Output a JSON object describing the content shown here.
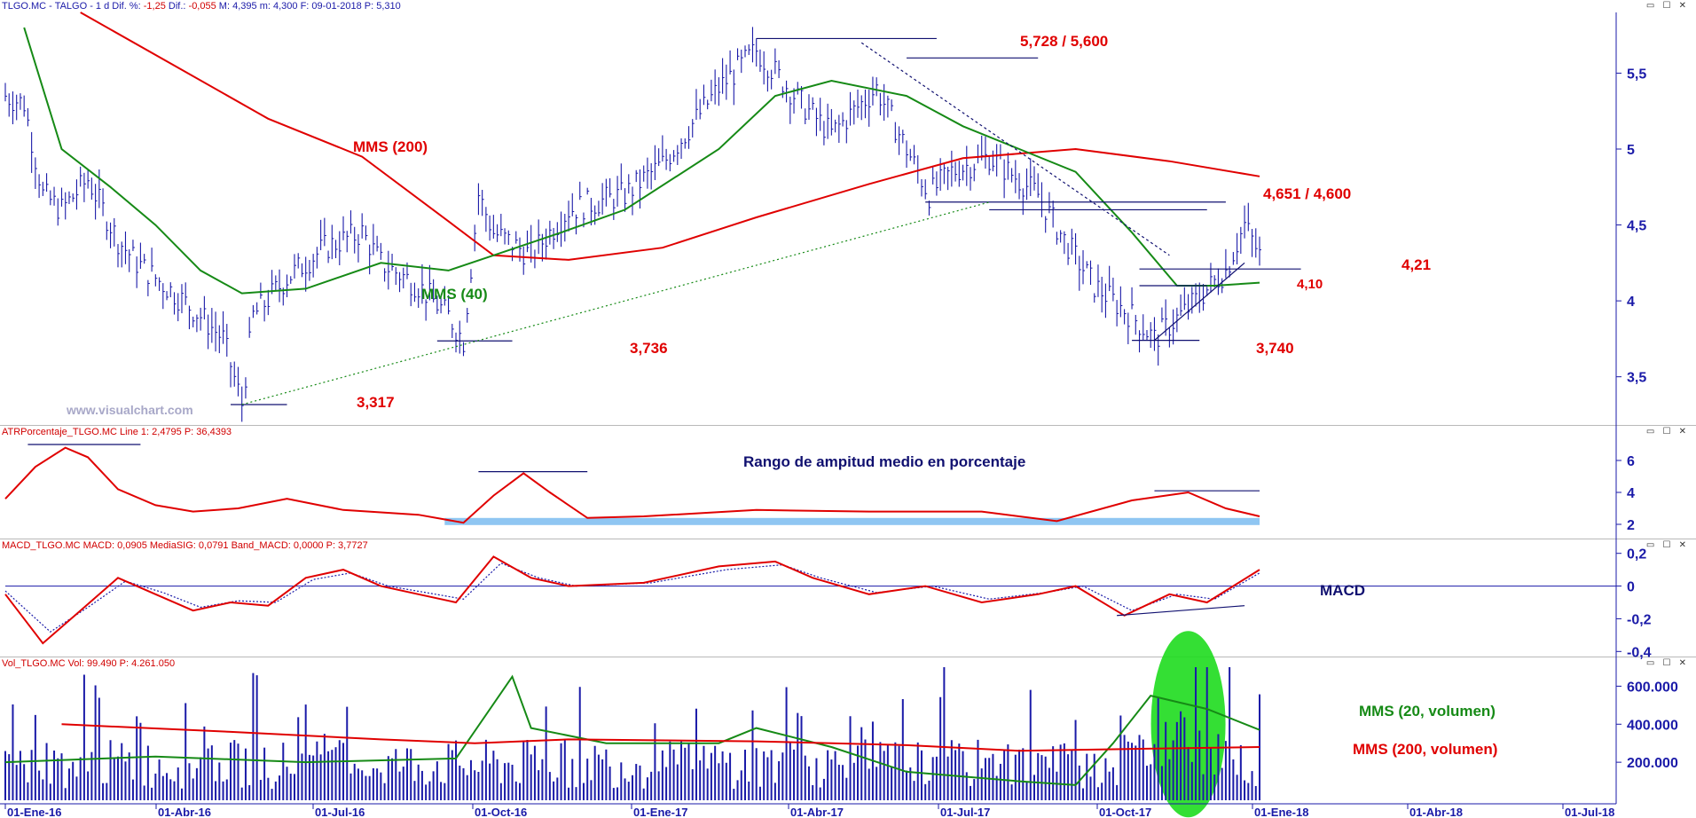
{
  "header": {
    "symbol": "TLGO.MC - TALGO - 1 d",
    "dif_pct_label": "Dif. %:",
    "dif_pct": "-1,25",
    "dif_label": "Dif.:",
    "dif": "-0,055",
    "max_label": "M:",
    "max": "4,395",
    "min_label": "m:",
    "min": "4,300",
    "date_label": "F:",
    "date": "09-01-2018",
    "p_label": "P:",
    "p": "5,310"
  },
  "watermark": "www.visualchart.com",
  "panels": {
    "atr": {
      "title": "ATRPorcentaje_TLGO.MC Line 1: 2,4795 P: 36,4393",
      "annotation": "Rango de ampitud medio en porcentaje"
    },
    "macd": {
      "title": "MACD_TLGO.MC MACD: 0,0905 MediaSIG: 0,0791 Band_MACD: 0,0000 P: 3,7727",
      "annotation": "MACD"
    },
    "vol": {
      "title": "Vol_TLGO.MC Vol: 99.490 P: 4.261.050",
      "annotation_20": "MMS (20, volumen)",
      "annotation_200": "MMS (200, volumen)"
    }
  },
  "window_buttons": "▭ ☐ ✕",
  "chart_data": [
    {
      "type": "bar",
      "subtype": "ohlc",
      "panel": "price",
      "x_ticks": [
        "01-Ene-16",
        "01-Abr-16",
        "01-Jul-16",
        "01-Oct-16",
        "01-Ene-17",
        "01-Abr-17",
        "01-Jul-17",
        "01-Oct-17",
        "01-Ene-18",
        "01-Abr-18",
        "01-Jul-18"
      ],
      "y_ticks": [
        "3,5",
        "4",
        "4,5",
        "5",
        "5,5"
      ],
      "ylim": [
        3.2,
        5.9
      ],
      "price_path": [
        [
          0,
          5.35
        ],
        [
          5,
          5.3
        ],
        [
          10,
          4.7
        ],
        [
          15,
          4.6
        ],
        [
          22,
          4.8
        ],
        [
          30,
          4.4
        ],
        [
          35,
          4.25
        ],
        [
          45,
          4.05
        ],
        [
          52,
          3.9
        ],
        [
          58,
          3.75
        ],
        [
          63,
          3.32
        ],
        [
          66,
          3.9
        ],
        [
          75,
          4.15
        ],
        [
          85,
          4.35
        ],
        [
          95,
          4.45
        ],
        [
          100,
          4.25
        ],
        [
          110,
          4.1
        ],
        [
          118,
          3.9
        ],
        [
          122,
          3.74
        ],
        [
          126,
          4.7
        ],
        [
          130,
          4.45
        ],
        [
          140,
          4.3
        ],
        [
          150,
          4.6
        ],
        [
          165,
          4.7
        ],
        [
          175,
          4.9
        ],
        [
          190,
          5.4
        ],
        [
          200,
          5.65
        ],
        [
          212,
          5.3
        ],
        [
          220,
          5.1
        ],
        [
          232,
          5.4
        ],
        [
          240,
          5.0
        ],
        [
          246,
          4.7
        ],
        [
          252,
          4.85
        ],
        [
          262,
          4.95
        ],
        [
          275,
          4.7
        ],
        [
          282,
          4.4
        ],
        [
          290,
          4.1
        ],
        [
          300,
          3.9
        ],
        [
          306,
          3.75
        ],
        [
          315,
          3.95
        ],
        [
          325,
          4.2
        ],
        [
          330,
          4.5
        ],
        [
          334,
          4.3
        ]
      ],
      "series": [
        {
          "name": "MMS (200)",
          "color": "#e00000",
          "points": [
            [
              20,
              5.9
            ],
            [
              45,
              5.55
            ],
            [
              70,
              5.2
            ],
            [
              95,
              4.95
            ],
            [
              115,
              4.58
            ],
            [
              130,
              4.3
            ],
            [
              150,
              4.27
            ],
            [
              175,
              4.35
            ],
            [
              200,
              4.55
            ],
            [
              230,
              4.77
            ],
            [
              255,
              4.94
            ],
            [
              285,
              5.0
            ],
            [
              310,
              4.92
            ],
            [
              334,
              4.82
            ]
          ]
        },
        {
          "name": "MMS (40)",
          "color": "#168a16",
          "points": [
            [
              5,
              5.8
            ],
            [
              15,
              5.0
            ],
            [
              28,
              4.75
            ],
            [
              40,
              4.5
            ],
            [
              52,
              4.2
            ],
            [
              63,
              4.05
            ],
            [
              80,
              4.08
            ],
            [
              100,
              4.25
            ],
            [
              118,
              4.2
            ],
            [
              130,
              4.3
            ],
            [
              148,
              4.45
            ],
            [
              165,
              4.6
            ],
            [
              190,
              5.0
            ],
            [
              205,
              5.35
            ],
            [
              220,
              5.45
            ],
            [
              240,
              5.35
            ],
            [
              255,
              5.15
            ],
            [
              270,
              5.0
            ],
            [
              285,
              4.85
            ],
            [
              300,
              4.45
            ],
            [
              312,
              4.1
            ],
            [
              322,
              4.1
            ],
            [
              334,
              4.12
            ]
          ]
        }
      ],
      "annotations": [
        {
          "text": "MMS (200)",
          "color": "#e00000"
        },
        {
          "text": "MMS (40)",
          "color": "#168a16"
        },
        {
          "text": "5,728 / 5,600",
          "color": "#e00000"
        },
        {
          "text": "4,651 / 4,600",
          "color": "#e00000"
        },
        {
          "text": "4,21",
          "color": "#e00000"
        },
        {
          "text": "4,10",
          "color": "#e00000"
        },
        {
          "text": "3,736",
          "color": "#e00000"
        },
        {
          "text": "3,740",
          "color": "#e00000"
        },
        {
          "text": "3,317",
          "color": "#e00000"
        }
      ],
      "levels": [
        5.728,
        5.6,
        4.651,
        4.6,
        4.21,
        4.1,
        3.736,
        3.74,
        3.317
      ]
    },
    {
      "type": "line",
      "panel": "atr",
      "y_ticks": [
        "2",
        "4",
        "6"
      ],
      "ylim": [
        1.5,
        7.5
      ],
      "series": [
        {
          "name": "ATRPorcentaje",
          "color": "#e00000",
          "points": [
            [
              0,
              3.6
            ],
            [
              8,
              5.6
            ],
            [
              16,
              6.8
            ],
            [
              22,
              6.2
            ],
            [
              30,
              4.2
            ],
            [
              40,
              3.2
            ],
            [
              50,
              2.8
            ],
            [
              62,
              3.0
            ],
            [
              75,
              3.6
            ],
            [
              90,
              2.9
            ],
            [
              110,
              2.6
            ],
            [
              122,
              2.1
            ],
            [
              130,
              3.8
            ],
            [
              138,
              5.2
            ],
            [
              145,
              4.0
            ],
            [
              155,
              2.4
            ],
            [
              170,
              2.5
            ],
            [
              200,
              2.9
            ],
            [
              230,
              2.8
            ],
            [
              260,
              2.8
            ],
            [
              280,
              2.2
            ],
            [
              300,
              3.5
            ],
            [
              315,
              4.0
            ],
            [
              325,
              3.0
            ],
            [
              334,
              2.5
            ]
          ]
        }
      ]
    },
    {
      "type": "line",
      "panel": "macd",
      "y_ticks": [
        "0,2",
        "0",
        "-0,2",
        "-0,4"
      ],
      "ylim": [
        -0.42,
        0.22
      ],
      "series": [
        {
          "name": "MACD",
          "color": "#e00000",
          "points": [
            [
              0,
              -0.05
            ],
            [
              10,
              -0.35
            ],
            [
              20,
              -0.15
            ],
            [
              30,
              0.05
            ],
            [
              40,
              -0.05
            ],
            [
              50,
              -0.15
            ],
            [
              60,
              -0.1
            ],
            [
              70,
              -0.12
            ],
            [
              80,
              0.05
            ],
            [
              90,
              0.1
            ],
            [
              100,
              0.0
            ],
            [
              110,
              -0.05
            ],
            [
              120,
              -0.1
            ],
            [
              130,
              0.18
            ],
            [
              140,
              0.05
            ],
            [
              150,
              0.0
            ],
            [
              170,
              0.02
            ],
            [
              190,
              0.12
            ],
            [
              205,
              0.15
            ],
            [
              215,
              0.05
            ],
            [
              230,
              -0.05
            ],
            [
              245,
              0.0
            ],
            [
              260,
              -0.1
            ],
            [
              275,
              -0.05
            ],
            [
              285,
              0.0
            ],
            [
              298,
              -0.18
            ],
            [
              310,
              -0.05
            ],
            [
              320,
              -0.1
            ],
            [
              334,
              0.1
            ]
          ]
        },
        {
          "name": "MediaSIG",
          "color": "#1a1aa8",
          "points": [
            [
              0,
              -0.03
            ],
            [
              12,
              -0.28
            ],
            [
              22,
              -0.13
            ],
            [
              32,
              0.03
            ],
            [
              42,
              -0.04
            ],
            [
              52,
              -0.13
            ],
            [
              62,
              -0.09
            ],
            [
              72,
              -0.1
            ],
            [
              82,
              0.04
            ],
            [
              92,
              0.08
            ],
            [
              102,
              0.0
            ],
            [
              112,
              -0.04
            ],
            [
              122,
              -0.08
            ],
            [
              132,
              0.14
            ],
            [
              142,
              0.05
            ],
            [
              152,
              0.0
            ],
            [
              172,
              0.02
            ],
            [
              192,
              0.1
            ],
            [
              207,
              0.13
            ],
            [
              217,
              0.05
            ],
            [
              232,
              -0.04
            ],
            [
              247,
              0.0
            ],
            [
              262,
              -0.08
            ],
            [
              277,
              -0.04
            ],
            [
              287,
              0.0
            ],
            [
              300,
              -0.15
            ],
            [
              312,
              -0.05
            ],
            [
              322,
              -0.08
            ],
            [
              334,
              0.08
            ]
          ]
        }
      ]
    },
    {
      "type": "bar",
      "panel": "volume",
      "y_ticks": [
        "200.000",
        "400.000",
        "600.000"
      ],
      "ylim": [
        0,
        700000
      ],
      "series": [
        {
          "name": "MMS (20, volumen)",
          "color": "#168a16",
          "points": [
            [
              0,
              200000
            ],
            [
              40,
              230000
            ],
            [
              80,
              200000
            ],
            [
              120,
              220000
            ],
            [
              135,
              650000
            ],
            [
              140,
              380000
            ],
            [
              160,
              300000
            ],
            [
              190,
              300000
            ],
            [
              200,
              380000
            ],
            [
              220,
              280000
            ],
            [
              240,
              150000
            ],
            [
              270,
              100000
            ],
            [
              285,
              80000
            ],
            [
              295,
              300000
            ],
            [
              305,
              550000
            ],
            [
              320,
              480000
            ],
            [
              334,
              370000
            ]
          ]
        },
        {
          "name": "MMS (200, volumen)",
          "color": "#e00000",
          "points": [
            [
              15,
              400000
            ],
            [
              60,
              360000
            ],
            [
              100,
              320000
            ],
            [
              125,
              300000
            ],
            [
              150,
              320000
            ],
            [
              200,
              310000
            ],
            [
              240,
              290000
            ],
            [
              270,
              260000
            ],
            [
              300,
              270000
            ],
            [
              334,
              280000
            ]
          ]
        }
      ]
    }
  ],
  "colors": {
    "price_bars": "#1a1aa8",
    "mms200": "#e00000",
    "mms40": "#168a16",
    "axis_text": "#1a1aa8",
    "highlight_green": "#1edc1e",
    "atr_band": "#8fc6f2"
  }
}
